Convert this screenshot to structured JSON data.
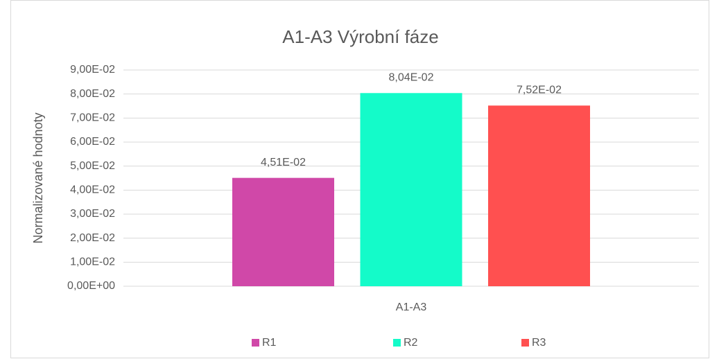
{
  "chart_data": {
    "type": "bar",
    "title": "A1-A3 Výrobní fáze",
    "ylabel": "Normalizované hodnoty",
    "categories": [
      "A1-A3"
    ],
    "series": [
      {
        "name": "R1",
        "color": "#d048a8",
        "values": [
          0.0451
        ],
        "value_labels": [
          "4,51E-02"
        ]
      },
      {
        "name": "R2",
        "color": "#14fbc9",
        "values": [
          0.0804
        ],
        "value_labels": [
          "8,04E-02"
        ]
      },
      {
        "name": "R3",
        "color": "#ff5050",
        "values": [
          0.0752
        ],
        "value_labels": [
          "7,52E-02"
        ]
      }
    ],
    "ylim": [
      0,
      0.09
    ],
    "yticks": [
      {
        "value": 0,
        "label": "0,00E+00"
      },
      {
        "value": 0.01,
        "label": "1,00E-02"
      },
      {
        "value": 0.02,
        "label": "2,00E-02"
      },
      {
        "value": 0.03,
        "label": "3,00E-02"
      },
      {
        "value": 0.04,
        "label": "4,00E-02"
      },
      {
        "value": 0.05,
        "label": "5,00E-02"
      },
      {
        "value": 0.06,
        "label": "6,00E-02"
      },
      {
        "value": 0.07,
        "label": "7,00E-02"
      },
      {
        "value": 0.08,
        "label": "8,00E-02"
      },
      {
        "value": 0.09,
        "label": "9,00E-02"
      }
    ],
    "grid": true,
    "legend": "bottom"
  }
}
